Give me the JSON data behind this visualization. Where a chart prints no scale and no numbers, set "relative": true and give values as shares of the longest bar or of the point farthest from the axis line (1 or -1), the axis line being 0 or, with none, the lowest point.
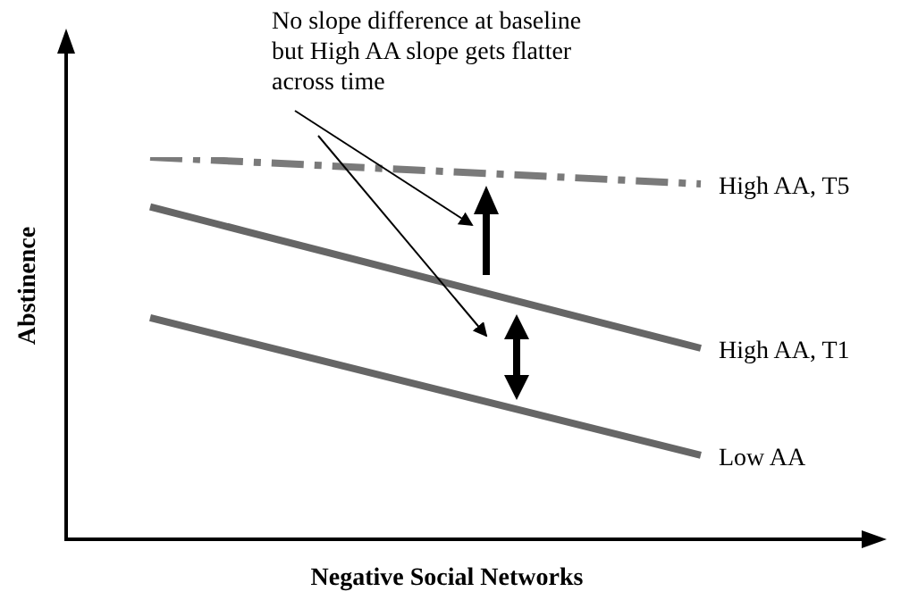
{
  "chart_data": {
    "type": "line",
    "relative": true,
    "xlabel": "Negative Social Networks",
    "ylabel": "Abstinence",
    "categories": [
      null,
      null
    ],
    "series": [
      {
        "name": "High AA, T5",
        "color": "#7a7a7a",
        "values": [
          1,
          0.93
        ],
        "line_style": "dashed"
      },
      {
        "name": "High AA, T1",
        "color": "#666666",
        "values": [
          0.87,
          0.5
        ],
        "line_style": "solid"
      },
      {
        "name": "Low AA",
        "color": "#666666",
        "values": [
          0.58,
          0.22
        ],
        "line_style": "solid"
      }
    ],
    "annotations": [
      "No slope difference at baseline\nbut High AA slope gets flatter\nacross time"
    ],
    "legend": false,
    "marker": "none",
    "tick_labels": false
  }
}
